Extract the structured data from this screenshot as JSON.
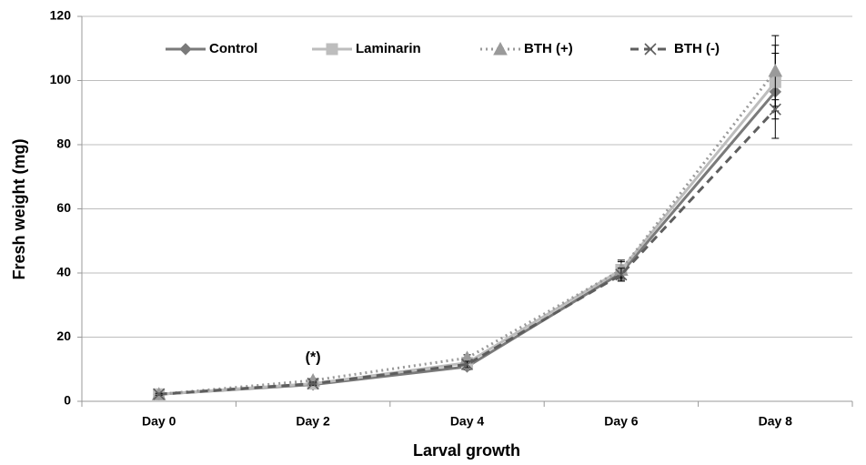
{
  "chart_data": {
    "type": "line",
    "x_label": "Larval growth",
    "y_label": "Fresh  weight  (mg)",
    "annotation": "(*)",
    "categories": [
      "Day 0",
      "Day 2",
      "Day 4",
      "Day 6",
      "Day 8"
    ],
    "ylim": [
      0,
      120
    ],
    "yticks": [
      0,
      20,
      40,
      60,
      80,
      100,
      120
    ],
    "grid": true,
    "legend": "top",
    "series": [
      {
        "name": "Control",
        "color": "#7a7a7a",
        "dash": "solid",
        "marker": "diamond",
        "values": [
          2.2,
          5.2,
          10.8,
          40,
          96.5
        ],
        "errors": [
          0.3,
          0.5,
          1,
          2.5,
          14.5
        ]
      },
      {
        "name": "Laminarin",
        "color": "#bdbdbd",
        "dash": "solid",
        "marker": "square",
        "values": [
          2.2,
          5.5,
          12,
          41,
          99.5
        ],
        "errors": [
          0.3,
          0.5,
          1,
          2.5,
          9
        ]
      },
      {
        "name": "BTH (+)",
        "color": "#9a9a9a",
        "dash": "dotted",
        "marker": "triangle",
        "values": [
          2.2,
          6.5,
          13.5,
          41,
          103
        ],
        "errors": [
          0.3,
          0.5,
          1,
          3,
          11
        ]
      },
      {
        "name": "BTH (-)",
        "color": "#5e5e5e",
        "dash": "dashed",
        "marker": "x",
        "values": [
          2.2,
          5.5,
          11.5,
          39.5,
          91
        ],
        "errors": [
          0.3,
          0.5,
          1,
          2,
          3
        ]
      }
    ]
  }
}
